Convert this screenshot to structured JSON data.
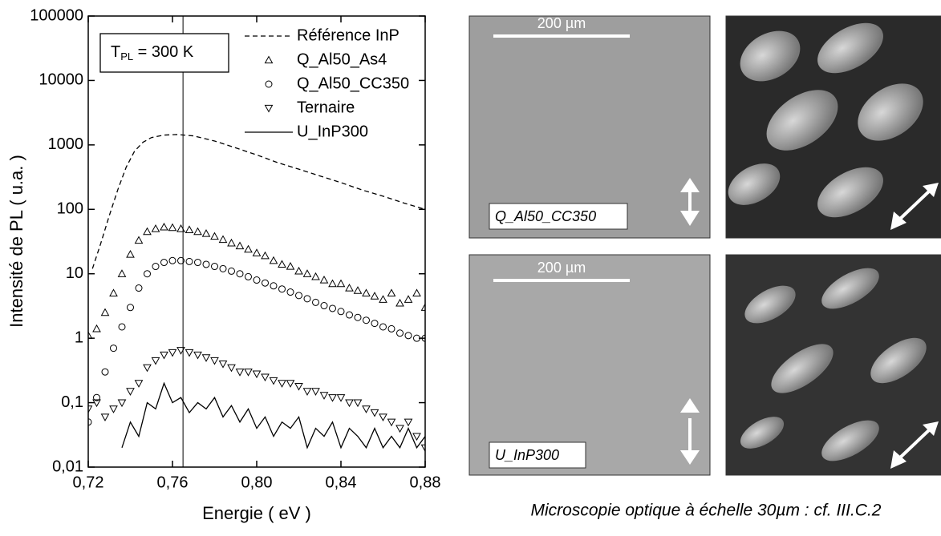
{
  "chart_data": {
    "type": "line",
    "x_label": "Energie ( eV )",
    "y_label": "Intensité de PL ( u.a. )",
    "annotation": {
      "main": "T",
      "sub": "PL",
      "rest": " = 300 K"
    },
    "vline_x": 0.765,
    "xlim": [
      0.72,
      0.88
    ],
    "xticks": [
      {
        "value": 0.72,
        "label": "0,72"
      },
      {
        "value": 0.76,
        "label": "0,76"
      },
      {
        "value": 0.8,
        "label": "0,80"
      },
      {
        "value": 0.84,
        "label": "0,84"
      },
      {
        "value": 0.88,
        "label": "0,88"
      }
    ],
    "ylim": [
      0.01,
      100000
    ],
    "log_y": true,
    "yticks": [
      {
        "value": 0.01,
        "label": "0,01"
      },
      {
        "value": 0.1,
        "label": "0,1"
      },
      1,
      10,
      100,
      1000,
      10000,
      100000
    ],
    "grid": false,
    "legend": "upper right",
    "series": [
      {
        "name": "Référence InP",
        "color": "#000000",
        "marker": "dashed",
        "x": [
          0.722,
          0.726,
          0.73,
          0.734,
          0.738,
          0.742,
          0.746,
          0.75,
          0.756,
          0.762,
          0.77,
          0.78,
          0.79,
          0.8,
          0.81,
          0.82,
          0.83,
          0.84,
          0.85,
          0.86,
          0.87,
          0.88
        ],
        "values": [
          12,
          30,
          80,
          200,
          450,
          800,
          1100,
          1300,
          1420,
          1450,
          1380,
          1150,
          900,
          700,
          530,
          420,
          330,
          260,
          200,
          160,
          125,
          100
        ]
      },
      {
        "name": "Q_Al50_As4",
        "color": "#000000",
        "marker": "triangle-up",
        "x": [
          0.72,
          0.724,
          0.728,
          0.732,
          0.736,
          0.74,
          0.744,
          0.748,
          0.752,
          0.756,
          0.76,
          0.764,
          0.768,
          0.772,
          0.776,
          0.78,
          0.784,
          0.788,
          0.792,
          0.796,
          0.8,
          0.804,
          0.808,
          0.812,
          0.816,
          0.82,
          0.824,
          0.828,
          0.832,
          0.836,
          0.84,
          0.844,
          0.848,
          0.852,
          0.856,
          0.86,
          0.864,
          0.868,
          0.872,
          0.876,
          0.88
        ],
        "values": [
          1.1,
          1.4,
          2.5,
          5,
          10,
          20,
          33,
          45,
          50,
          53,
          52,
          50,
          48,
          45,
          42,
          38,
          34,
          30,
          27,
          24,
          21,
          19,
          16,
          14,
          13,
          11,
          10,
          9,
          8,
          7,
          7,
          6,
          5.5,
          5,
          4.5,
          4,
          5,
          3.5,
          4,
          5,
          3
        ]
      },
      {
        "name": "Q_Al50_CC350",
        "color": "#000000",
        "marker": "circle",
        "x": [
          0.72,
          0.724,
          0.728,
          0.732,
          0.736,
          0.74,
          0.744,
          0.748,
          0.752,
          0.756,
          0.76,
          0.764,
          0.768,
          0.772,
          0.776,
          0.78,
          0.784,
          0.788,
          0.792,
          0.796,
          0.8,
          0.804,
          0.808,
          0.812,
          0.816,
          0.82,
          0.824,
          0.828,
          0.832,
          0.836,
          0.84,
          0.844,
          0.848,
          0.852,
          0.856,
          0.86,
          0.864,
          0.868,
          0.872,
          0.876,
          0.88
        ],
        "values": [
          0.05,
          0.12,
          0.3,
          0.7,
          1.5,
          3,
          6,
          10,
          13,
          15,
          16,
          16,
          15.5,
          15,
          14,
          13,
          12,
          11,
          10,
          9,
          8,
          7.2,
          6.5,
          5.8,
          5.2,
          4.6,
          4.1,
          3.6,
          3.2,
          2.9,
          2.6,
          2.3,
          2.1,
          1.9,
          1.7,
          1.5,
          1.4,
          1.2,
          1.1,
          1,
          1
        ]
      },
      {
        "name": "Ternaire",
        "color": "#000000",
        "marker": "triangle-down",
        "x": [
          0.72,
          0.724,
          0.728,
          0.732,
          0.736,
          0.74,
          0.744,
          0.748,
          0.752,
          0.756,
          0.76,
          0.764,
          0.768,
          0.772,
          0.776,
          0.78,
          0.784,
          0.788,
          0.792,
          0.796,
          0.8,
          0.804,
          0.808,
          0.812,
          0.816,
          0.82,
          0.824,
          0.828,
          0.832,
          0.836,
          0.84,
          0.844,
          0.848,
          0.852,
          0.856,
          0.86,
          0.864,
          0.868,
          0.872,
          0.876,
          0.88
        ],
        "values": [
          0.08,
          0.1,
          0.06,
          0.08,
          0.1,
          0.15,
          0.2,
          0.35,
          0.45,
          0.55,
          0.6,
          0.65,
          0.6,
          0.55,
          0.5,
          0.45,
          0.4,
          0.35,
          0.3,
          0.3,
          0.28,
          0.25,
          0.22,
          0.2,
          0.2,
          0.18,
          0.15,
          0.15,
          0.13,
          0.12,
          0.12,
          0.1,
          0.1,
          0.08,
          0.07,
          0.06,
          0.05,
          0.04,
          0.05,
          0.03,
          0.02
        ]
      },
      {
        "name": "U_InP300",
        "color": "#000000",
        "marker": "solid",
        "x": [
          0.736,
          0.74,
          0.744,
          0.748,
          0.752,
          0.756,
          0.76,
          0.764,
          0.768,
          0.772,
          0.776,
          0.78,
          0.784,
          0.788,
          0.792,
          0.796,
          0.8,
          0.804,
          0.808,
          0.812,
          0.816,
          0.82,
          0.824,
          0.828,
          0.832,
          0.836,
          0.84,
          0.844,
          0.848,
          0.852,
          0.856,
          0.86,
          0.864,
          0.868,
          0.872,
          0.876,
          0.88
        ],
        "values": [
          0.02,
          0.05,
          0.03,
          0.1,
          0.08,
          0.2,
          0.1,
          0.12,
          0.07,
          0.1,
          0.08,
          0.12,
          0.06,
          0.09,
          0.05,
          0.08,
          0.04,
          0.06,
          0.03,
          0.05,
          0.04,
          0.06,
          0.02,
          0.04,
          0.03,
          0.05,
          0.02,
          0.04,
          0.03,
          0.02,
          0.04,
          0.02,
          0.03,
          0.02,
          0.04,
          0.02,
          0.03
        ]
      }
    ]
  },
  "micrographs": {
    "scale_top": "200 µm",
    "scale_bottom": "200 µm",
    "label_top": "Q_Al50_CC350",
    "label_bottom": "U_InP300",
    "caption": "Microscopie optique à échelle 30µm : cf. III.C.2"
  }
}
